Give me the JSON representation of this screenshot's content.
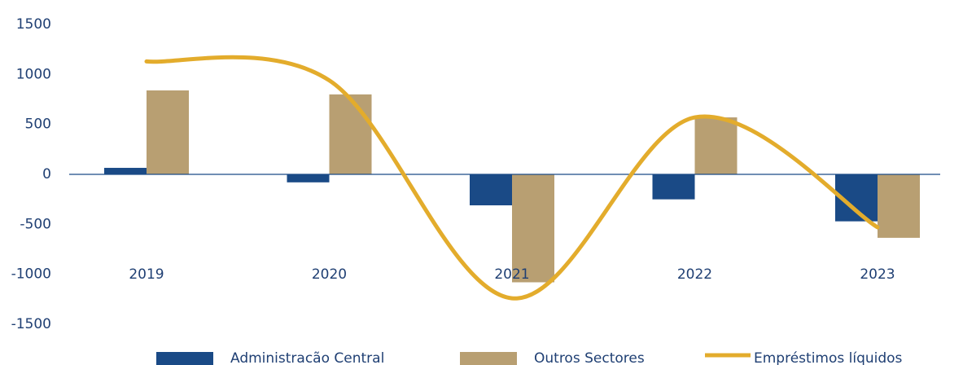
{
  "chart_data": {
    "type": "bar",
    "categories": [
      "2019",
      "2020",
      "2021",
      "2022",
      "2023"
    ],
    "series": [
      {
        "name": "Administracão Central",
        "color": "#1a4a86",
        "type": "bar",
        "values": [
          65,
          -80,
          -310,
          -250,
          -470
        ]
      },
      {
        "name": "Outros Sectores",
        "color": "#b89f72",
        "type": "bar",
        "values": [
          840,
          800,
          -1080,
          570,
          -635
        ]
      },
      {
        "name": "Empréstimos líquidos",
        "color": "#e3ac2c",
        "type": "line",
        "values": [
          1130,
          940,
          -1240,
          570,
          -530
        ]
      }
    ],
    "ylim": [
      -1500,
      1500
    ],
    "yticks": [
      -1500,
      -1000,
      -500,
      0,
      500,
      1000,
      1500
    ],
    "grid": false,
    "legend": "bottom"
  }
}
